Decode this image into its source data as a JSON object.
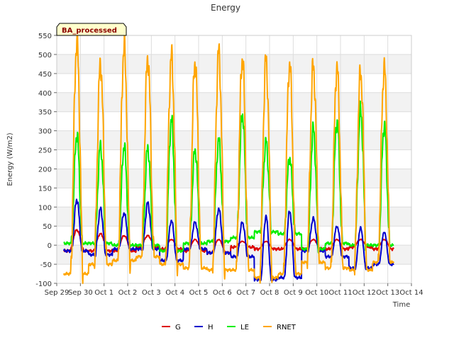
{
  "chart_data": {
    "type": "line",
    "title": "Energy",
    "badge": "BA_processed",
    "xlabel": "Time",
    "ylabel": "Energy (W/m2)",
    "ylim": [
      -100,
      550
    ],
    "yticks": [
      -100,
      -50,
      0,
      50,
      100,
      150,
      200,
      250,
      300,
      350,
      400,
      450,
      500,
      550
    ],
    "xlim": [
      0,
      15
    ],
    "xtick_labels": [
      "Sep 29",
      "Sep 30",
      "Oct 1",
      "Oct 2",
      "Oct 3",
      "Oct 4",
      "Oct 5",
      "Oct 6",
      "Oct 7",
      "Oct 8",
      "Oct 9",
      "Oct 10",
      "Oct 11",
      "Oct 12",
      "Oct 13",
      "Oct 14"
    ],
    "grid": true,
    "banded_background": true,
    "legend_position": "bottom",
    "day_centers": [
      0.85,
      1.85,
      2.85,
      3.85,
      4.85,
      5.85,
      6.85,
      7.85,
      8.85,
      9.85,
      10.85,
      11.85,
      12.85,
      13.85
    ],
    "x_range": [
      0.3,
      14.25
    ],
    "series": [
      {
        "name": "G",
        "color": "#dd0000",
        "day_peaks": [
          40,
          30,
          25,
          25,
          15,
          15,
          15,
          10,
          10,
          15,
          15,
          15,
          15,
          15
        ],
        "night_values": [
          -15,
          -15,
          -15,
          -5,
          -10,
          -15,
          -20,
          -5,
          -10,
          -10,
          -10,
          -10,
          -5,
          -10
        ]
      },
      {
        "name": "H",
        "color": "#0000cc",
        "day_peaks": [
          120,
          95,
          85,
          110,
          65,
          60,
          95,
          60,
          75,
          90,
          70,
          50,
          45,
          35
        ],
        "night_values": [
          -15,
          -25,
          -10,
          -10,
          -40,
          -10,
          -20,
          -30,
          -90,
          -85,
          -15,
          -30,
          -60,
          -50
        ]
      },
      {
        "name": "LE",
        "color": "#00ee00",
        "day_peaks": [
          290,
          260,
          260,
          255,
          330,
          250,
          275,
          345,
          270,
          230,
          305,
          325,
          355,
          315
        ],
        "night_values": [
          5,
          5,
          0,
          0,
          -15,
          5,
          10,
          20,
          35,
          30,
          -10,
          5,
          0,
          0
        ]
      },
      {
        "name": "RNET",
        "color": "#ffa500",
        "day_peaks": [
          535,
          475,
          520,
          490,
          495,
          480,
          505,
          490,
          485,
          475,
          470,
          465,
          455,
          465
        ],
        "night_values": [
          -75,
          -50,
          -40,
          -30,
          -50,
          -60,
          -65,
          -65,
          -85,
          -75,
          -45,
          -60,
          -65,
          -45
        ]
      }
    ]
  }
}
